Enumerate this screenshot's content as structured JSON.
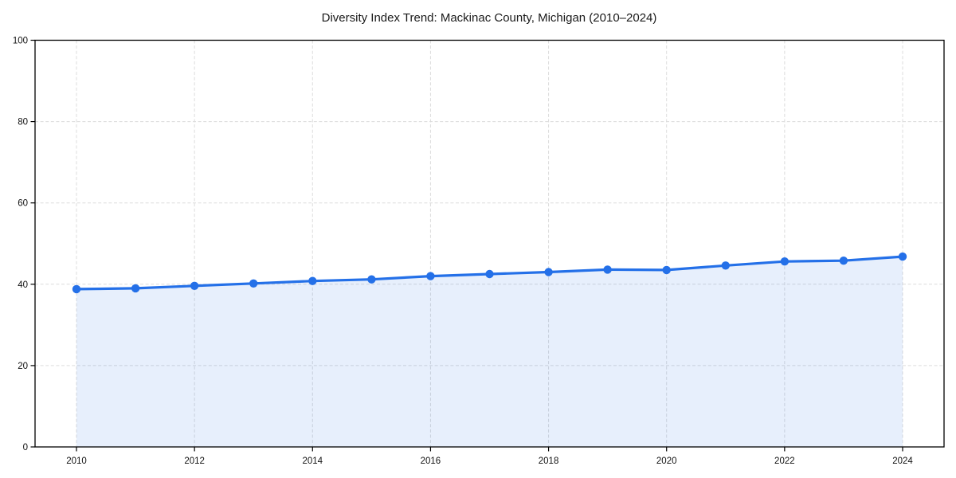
{
  "chart_data": {
    "type": "area",
    "title": "Diversity Index Trend: Mackinac County, Michigan (2010–2024)",
    "x": [
      2010,
      2011,
      2012,
      2013,
      2014,
      2015,
      2016,
      2017,
      2018,
      2019,
      2020,
      2021,
      2022,
      2023,
      2024
    ],
    "series": [
      {
        "name": "Diversity Index",
        "values": [
          38.8,
          39.0,
          39.6,
          40.2,
          40.8,
          41.2,
          42.0,
          42.5,
          43.0,
          43.6,
          43.5,
          44.6,
          45.6,
          45.8,
          46.8
        ]
      }
    ],
    "xlabel": "",
    "ylabel": "",
    "ylim": [
      0,
      100
    ],
    "yticks": [
      0,
      20,
      40,
      60,
      80,
      100
    ],
    "xticks": [
      2010,
      2012,
      2014,
      2016,
      2018,
      2020,
      2022,
      2024
    ],
    "grid": true,
    "grid_style": "dashed",
    "legend": "none",
    "line_color": "#2470e8",
    "fill_color": "#2470e8",
    "fill_opacity": 0.11,
    "marker": "circle",
    "grid_color": "#dcdcdc",
    "spine_color": "#000000",
    "text_color": "#1a1a1a"
  }
}
